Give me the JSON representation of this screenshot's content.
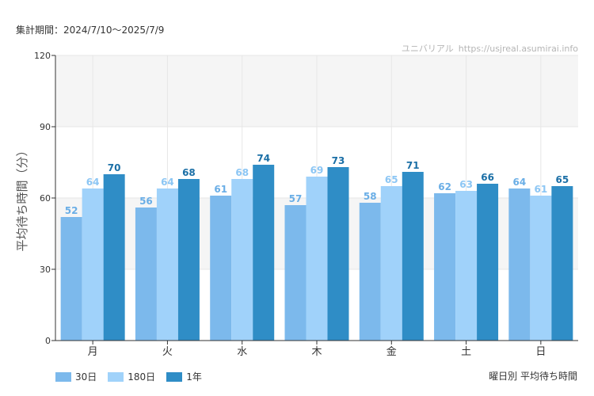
{
  "header": {
    "period_text": "集計期間：2024/7/10～2025/7/9",
    "credit_name": "ユニバリアル",
    "credit_url": "https://usjreal.asumirai.info"
  },
  "footer": {
    "caption": "曜日別 平均待ち時間"
  },
  "chart_data": {
    "type": "bar",
    "ylabel": "平均待ち時間（分）",
    "xlabel": "",
    "ylim": [
      0,
      120
    ],
    "yticks": [
      0,
      30,
      60,
      90,
      120
    ],
    "grid": true,
    "legend_position": "bottom-left",
    "categories": [
      "月",
      "火",
      "水",
      "木",
      "金",
      "土",
      "日"
    ],
    "series": [
      {
        "name": "30日",
        "color": "#7cb9ec",
        "label_color": "#6aaee6",
        "values": [
          52,
          56,
          61,
          57,
          58,
          62,
          64
        ]
      },
      {
        "name": "180日",
        "color": "#a0d2fa",
        "label_color": "#8cc6f4",
        "values": [
          64,
          64,
          68,
          69,
          65,
          63,
          61
        ]
      },
      {
        "name": "1年",
        "color": "#2f8dc6",
        "label_color": "#1b6fa6",
        "values": [
          70,
          68,
          74,
          73,
          71,
          66,
          65
        ]
      }
    ]
  }
}
